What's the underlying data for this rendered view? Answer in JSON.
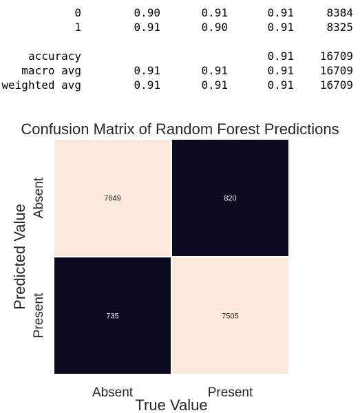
{
  "report": {
    "rows": [
      {
        "label": "0",
        "precision": "0.90",
        "recall": "0.91",
        "f1": "0.91",
        "support": "8384"
      },
      {
        "label": "1",
        "precision": "0.91",
        "recall": "0.90",
        "f1": "0.91",
        "support": "8325"
      },
      {
        "label": "accuracy",
        "precision": "",
        "recall": "",
        "f1": "0.91",
        "support": "16709"
      },
      {
        "label": "macro avg",
        "precision": "0.91",
        "recall": "0.91",
        "f1": "0.91",
        "support": "16709"
      },
      {
        "label": "weighted avg",
        "precision": "0.91",
        "recall": "0.91",
        "f1": "0.91",
        "support": "16709"
      }
    ]
  },
  "chart_data": {
    "type": "heatmap",
    "title": "Confusion Matrix of Random Forest Predictions",
    "xlabel": "True Value",
    "ylabel": "Predicted Value",
    "x_categories": [
      "Absent",
      "Present"
    ],
    "y_categories": [
      "Absent",
      "Present"
    ],
    "values": [
      [
        7649,
        820
      ],
      [
        735,
        7505
      ]
    ],
    "colors": {
      "high": "#fbeadc",
      "mid_high": "#f7e3d3",
      "low": "#0b0a1f"
    }
  }
}
